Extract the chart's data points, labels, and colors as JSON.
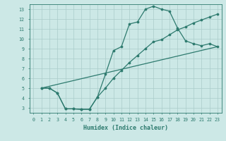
{
  "title": "",
  "xlabel": "Humidex (Indice chaleur)",
  "bg_color": "#cce8e6",
  "grid_color": "#aaccca",
  "line_color": "#2d7a6e",
  "xlim": [
    -0.5,
    23.5
  ],
  "ylim": [
    2.5,
    13.5
  ],
  "xticks": [
    0,
    1,
    2,
    3,
    4,
    5,
    6,
    7,
    8,
    9,
    10,
    11,
    12,
    13,
    14,
    15,
    16,
    17,
    18,
    19,
    20,
    21,
    22,
    23
  ],
  "yticks": [
    3,
    4,
    5,
    6,
    7,
    8,
    9,
    10,
    11,
    12,
    13
  ],
  "line1_x": [
    1,
    2,
    3,
    4,
    5,
    6,
    7,
    8,
    9,
    10,
    11,
    12,
    13,
    14,
    15,
    16,
    17,
    18,
    19,
    20,
    21,
    22,
    23
  ],
  "line1_y": [
    5.0,
    5.0,
    4.5,
    2.9,
    2.9,
    2.85,
    2.85,
    4.1,
    6.4,
    8.8,
    9.2,
    11.5,
    11.7,
    13.0,
    13.3,
    13.0,
    12.8,
    11.1,
    9.8,
    9.5,
    9.3,
    9.5,
    9.2
  ],
  "line2_x": [
    1,
    2,
    3,
    4,
    5,
    6,
    7,
    8,
    9,
    10,
    11,
    12,
    13,
    14,
    15,
    16,
    17,
    18,
    19,
    20,
    21,
    22,
    23
  ],
  "line2_y": [
    5.0,
    5.0,
    4.5,
    2.9,
    2.9,
    2.85,
    2.85,
    4.1,
    5.0,
    6.0,
    6.8,
    7.6,
    8.3,
    9.0,
    9.7,
    9.9,
    10.4,
    10.9,
    11.2,
    11.6,
    11.9,
    12.2,
    12.5
  ],
  "line3_x": [
    1,
    23
  ],
  "line3_y": [
    5.0,
    9.2
  ],
  "marker_size": 2.2,
  "linewidth": 0.9
}
